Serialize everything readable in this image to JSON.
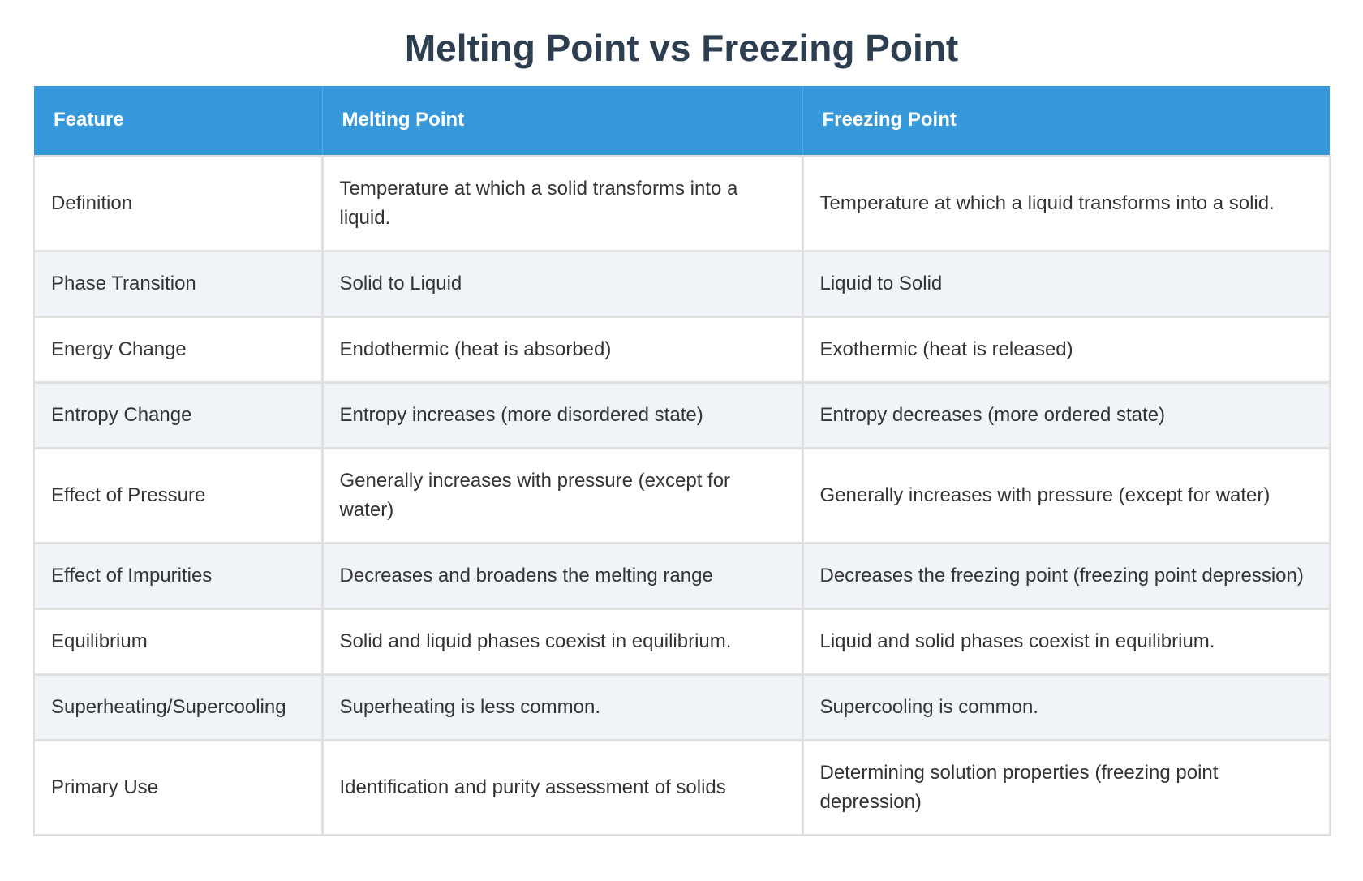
{
  "title": "Melting Point vs Freezing Point",
  "colors": {
    "title": "#2c3e50",
    "header_bg": "#3498db",
    "header_text": "#ffffff",
    "row_alt_bg": "#f0f4f9",
    "border": "#e0e0e0",
    "text": "#333333"
  },
  "table": {
    "headers": [
      "Feature",
      "Melting Point",
      "Freezing Point"
    ],
    "rows": [
      [
        "Definition",
        "Temperature at which a solid transforms into a liquid.",
        "Temperature at which a liquid transforms into a solid."
      ],
      [
        "Phase Transition",
        "Solid to Liquid",
        "Liquid to Solid"
      ],
      [
        "Energy Change",
        "Endothermic (heat is absorbed)",
        "Exothermic (heat is released)"
      ],
      [
        "Entropy Change",
        "Entropy increases (more disordered state)",
        "Entropy decreases (more ordered state)"
      ],
      [
        "Effect of Pressure",
        "Generally increases with pressure (except for water)",
        "Generally increases with pressure (except for water)"
      ],
      [
        "Effect of Impurities",
        "Decreases and broadens the melting range",
        "Decreases the freezing point (freezing point depression)"
      ],
      [
        "Equilibrium",
        "Solid and liquid phases coexist in equilibrium.",
        "Liquid and solid phases coexist in equilibrium."
      ],
      [
        "Superheating/Supercooling",
        "Superheating is less common.",
        "Supercooling is common."
      ],
      [
        "Primary Use",
        "Identification and purity assessment of solids",
        "Determining solution properties (freezing point depression)"
      ]
    ]
  }
}
